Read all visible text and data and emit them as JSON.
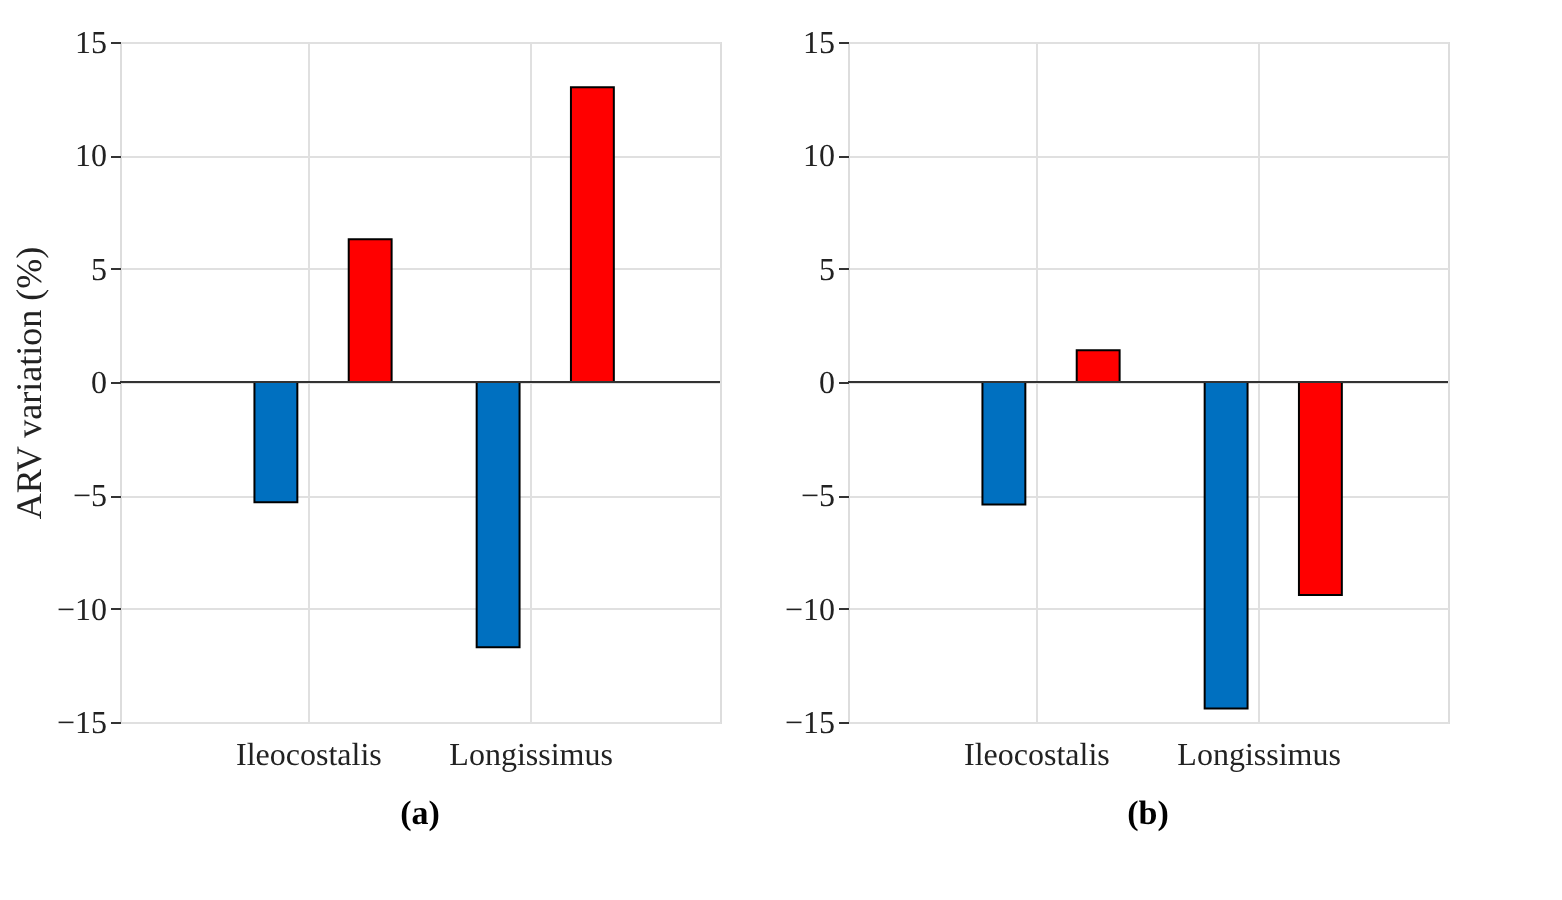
{
  "chart_data": [
    {
      "type": "bar",
      "title": "(a)",
      "ylabel": "ARV variation (%)",
      "categories": [
        "Ileocostalis",
        "Longissimus"
      ],
      "series": [
        {
          "color": "#0070c0",
          "values": [
            -5.3,
            -11.7
          ]
        },
        {
          "color": "#ff0000",
          "values": [
            6.3,
            13.0
          ]
        }
      ],
      "ylim": [
        -15,
        15
      ],
      "yticks": [
        -15,
        -10,
        -5,
        0,
        5,
        10,
        15
      ],
      "grid": true,
      "legend": false
    },
    {
      "type": "bar",
      "title": "(b)",
      "categories": [
        "Ileocostalis",
        "Longissimus"
      ],
      "series": [
        {
          "color": "#0070c0",
          "values": [
            -5.4,
            -14.4
          ]
        },
        {
          "color": "#ff0000",
          "values": [
            1.4,
            -9.4
          ]
        }
      ],
      "ylim": [
        -15,
        15
      ],
      "yticks": [
        -15,
        -10,
        -5,
        0,
        5,
        10,
        15
      ],
      "grid": true,
      "legend": false
    }
  ]
}
